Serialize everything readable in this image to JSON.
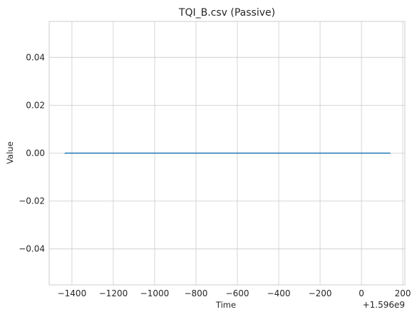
{
  "chart_data": {
    "type": "line",
    "title": "TQI_B.csv (Passive)",
    "xlabel": "Time",
    "ylabel": "Value",
    "x_offset_label": "+1.596e9",
    "xlim": [
      -1510,
      210
    ],
    "ylim": [
      -0.055,
      0.055
    ],
    "grid": true,
    "x_ticks": [
      -1400,
      -1200,
      -1000,
      -800,
      -600,
      -400,
      -200,
      0,
      200
    ],
    "x_tick_labels": [
      "−1400",
      "−1200",
      "−1000",
      "−800",
      "−600",
      "−400",
      "−200",
      "0",
      "200"
    ],
    "y_ticks": [
      -0.04,
      -0.02,
      0.0,
      0.02,
      0.04
    ],
    "y_tick_labels": [
      "−0.04",
      "−0.02",
      "0.00",
      "0.02",
      "0.04"
    ],
    "series": [
      {
        "color": "#1f77b4",
        "x": [
          -1435,
          140
        ],
        "y": [
          0,
          0
        ]
      }
    ]
  }
}
